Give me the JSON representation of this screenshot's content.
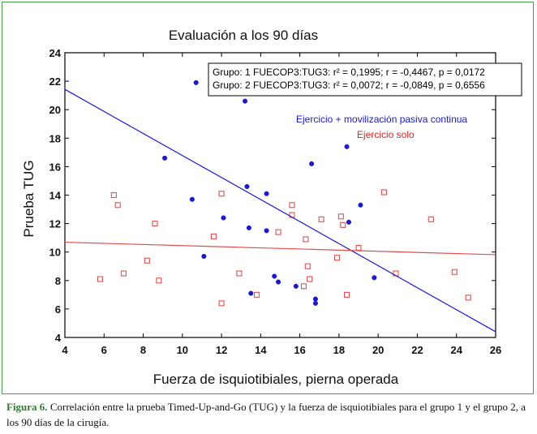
{
  "caption": {
    "label": "Figura 6.",
    "text": "Correlación entre la prueba Timed-Up-and-Go (TUG) y la fuerza de isquiotibiales para el grupo 1 y el grupo 2, a los 90 días de la cirugía."
  },
  "chart_data": {
    "type": "scatter",
    "title": "Evaluación a los 90 días",
    "xlabel": "Fuerza de isquiotibiales, pierna operada",
    "ylabel": "Prueba TUG",
    "xlim": [
      4,
      26
    ],
    "ylim": [
      4,
      24
    ],
    "xticks": [
      4,
      6,
      8,
      10,
      12,
      14,
      16,
      18,
      20,
      22,
      24,
      26
    ],
    "yticks": [
      4,
      6,
      8,
      10,
      12,
      14,
      16,
      18,
      20,
      22,
      24
    ],
    "grid": false,
    "stats_box": [
      "Grupo: 1 FUECOP3:TUG3: r² = 0,1995; r = -0,4467, p = 0,0172",
      "Grupo: 2 FUECOP3:TUG3: r² = 0,0072; r = -0,0849, p = 0,6556"
    ],
    "series": [
      {
        "name": "Ejercicio + movilización pasiva continua",
        "color": "#1a1acc",
        "marker": "filled-circle",
        "points": [
          [
            9.1,
            16.6
          ],
          [
            10.5,
            13.7
          ],
          [
            10.7,
            21.9
          ],
          [
            11.1,
            9.7
          ],
          [
            12.1,
            12.4
          ],
          [
            12.4,
            21.2
          ],
          [
            13.2,
            20.6
          ],
          [
            13.3,
            14.6
          ],
          [
            13.4,
            11.7
          ],
          [
            13.5,
            7.1
          ],
          [
            14.3,
            11.5
          ],
          [
            14.3,
            14.1
          ],
          [
            14.7,
            8.3
          ],
          [
            14.9,
            7.9
          ],
          [
            15.8,
            7.6
          ],
          [
            16.6,
            16.2
          ],
          [
            16.8,
            6.7
          ],
          [
            16.8,
            6.4
          ],
          [
            18.4,
            17.4
          ],
          [
            18.5,
            12.1
          ],
          [
            19.1,
            13.3
          ],
          [
            19.8,
            8.2
          ]
        ],
        "fit": {
          "intercept": 24.52,
          "slope": -0.7738
        }
      },
      {
        "name": "Ejercicio solo",
        "color": "#e05050",
        "marker": "open-square",
        "points": [
          [
            5.8,
            8.1
          ],
          [
            6.5,
            14.0
          ],
          [
            6.7,
            13.3
          ],
          [
            7.0,
            8.5
          ],
          [
            8.2,
            9.4
          ],
          [
            8.6,
            12.0
          ],
          [
            8.8,
            8.0
          ],
          [
            11.6,
            11.1
          ],
          [
            12.0,
            14.1
          ],
          [
            12.0,
            6.4
          ],
          [
            12.9,
            8.5
          ],
          [
            13.8,
            7.0
          ],
          [
            14.9,
            11.4
          ],
          [
            15.6,
            13.3
          ],
          [
            15.6,
            12.6
          ],
          [
            16.2,
            7.6
          ],
          [
            16.3,
            10.9
          ],
          [
            16.4,
            9.0
          ],
          [
            16.5,
            8.1
          ],
          [
            17.1,
            12.3
          ],
          [
            17.9,
            9.6
          ],
          [
            18.1,
            12.5
          ],
          [
            18.2,
            11.9
          ],
          [
            18.4,
            7.0
          ],
          [
            19.0,
            10.3
          ],
          [
            20.3,
            14.2
          ],
          [
            20.9,
            8.5
          ],
          [
            22.7,
            12.3
          ],
          [
            23.9,
            8.6
          ],
          [
            24.6,
            6.8
          ]
        ],
        "fit": {
          "intercept": 10.85,
          "slope": -0.0398
        }
      }
    ]
  }
}
